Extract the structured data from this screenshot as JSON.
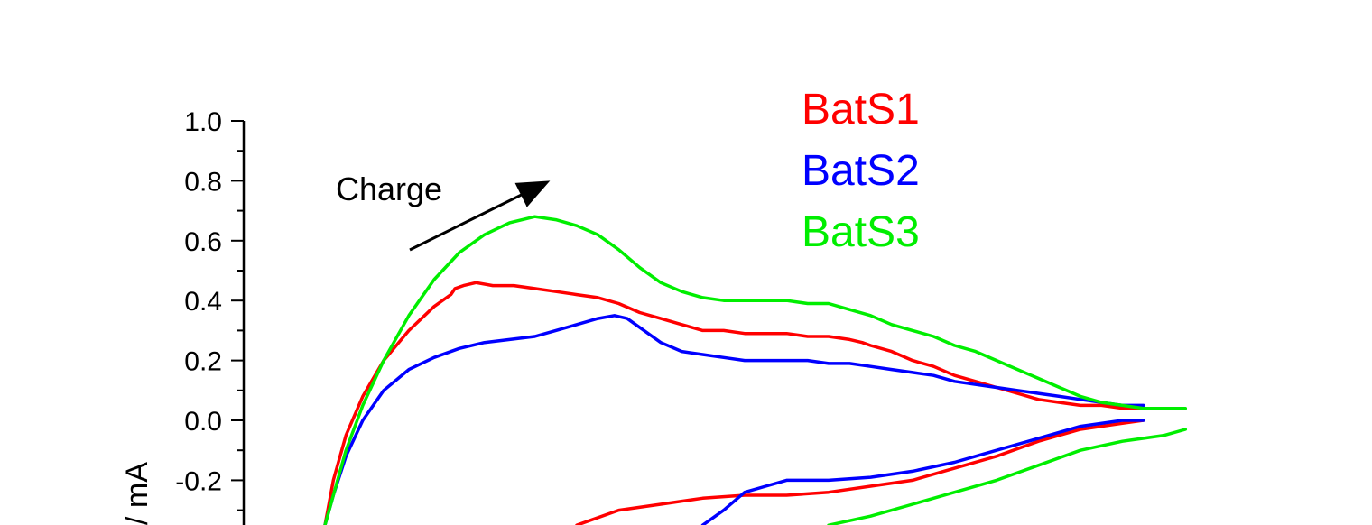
{
  "chart_data": {
    "type": "line",
    "ylabel": "/ mA",
    "ylim": [
      -0.35,
      1.0
    ],
    "yticks": [
      {
        "value": 1.0,
        "label": "1.0"
      },
      {
        "value": 0.8,
        "label": "0.8"
      },
      {
        "value": 0.6,
        "label": "0.6"
      },
      {
        "value": 0.4,
        "label": "0.4"
      },
      {
        "value": 0.2,
        "label": "0.2"
      },
      {
        "value": 0.0,
        "label": "0.0"
      },
      {
        "value": -0.2,
        "label": "-0.2"
      }
    ],
    "annotation": {
      "text": "Charge"
    },
    "legend_position": "top-center",
    "series": [
      {
        "name": "BatS1",
        "color": "#ff0000",
        "x": [
          0.0,
          0.02,
          0.05,
          0.09,
          0.14,
          0.2,
          0.26,
          0.3,
          0.31,
          0.33,
          0.36,
          0.4,
          0.45,
          0.5,
          0.55,
          0.6,
          0.65,
          0.7,
          0.75,
          0.8,
          0.85,
          0.9,
          0.95,
          1.0,
          1.05,
          1.1,
          1.15,
          1.2,
          1.25,
          1.28,
          1.3,
          1.35,
          1.4,
          1.45,
          1.5,
          1.55,
          1.6,
          1.65,
          1.7,
          1.75,
          1.8,
          1.85,
          1.9,
          1.95
        ],
        "values": [
          -0.35,
          -0.2,
          -0.05,
          0.08,
          0.2,
          0.3,
          0.38,
          0.42,
          0.44,
          0.45,
          0.46,
          0.45,
          0.45,
          0.44,
          0.43,
          0.42,
          0.41,
          0.39,
          0.36,
          0.34,
          0.32,
          0.3,
          0.3,
          0.29,
          0.29,
          0.29,
          0.28,
          0.28,
          0.27,
          0.26,
          0.25,
          0.23,
          0.2,
          0.18,
          0.15,
          0.13,
          0.11,
          0.09,
          0.07,
          0.06,
          0.05,
          0.05,
          0.04,
          0.04
        ]
      },
      {
        "name": "BatS2",
        "color": "#0000ff",
        "x": [
          0.0,
          0.02,
          0.05,
          0.09,
          0.14,
          0.2,
          0.26,
          0.32,
          0.38,
          0.44,
          0.5,
          0.55,
          0.6,
          0.65,
          0.69,
          0.72,
          0.75,
          0.8,
          0.85,
          0.9,
          0.95,
          1.0,
          1.05,
          1.1,
          1.15,
          1.2,
          1.25,
          1.3,
          1.35,
          1.4,
          1.45,
          1.5,
          1.55,
          1.6,
          1.65,
          1.7,
          1.75,
          1.8,
          1.85,
          1.9,
          1.95
        ],
        "values": [
          -0.35,
          -0.25,
          -0.12,
          0.0,
          0.1,
          0.17,
          0.21,
          0.24,
          0.26,
          0.27,
          0.28,
          0.3,
          0.32,
          0.34,
          0.35,
          0.34,
          0.31,
          0.26,
          0.23,
          0.22,
          0.21,
          0.2,
          0.2,
          0.2,
          0.2,
          0.19,
          0.19,
          0.18,
          0.17,
          0.16,
          0.15,
          0.13,
          0.12,
          0.11,
          0.1,
          0.09,
          0.08,
          0.07,
          0.06,
          0.05,
          0.05
        ]
      },
      {
        "name": "BatS3",
        "color": "#00ee00",
        "x": [
          0.0,
          0.02,
          0.05,
          0.09,
          0.14,
          0.2,
          0.26,
          0.32,
          0.38,
          0.44,
          0.5,
          0.55,
          0.6,
          0.65,
          0.7,
          0.75,
          0.8,
          0.85,
          0.9,
          0.95,
          1.0,
          1.05,
          1.1,
          1.15,
          1.2,
          1.25,
          1.3,
          1.35,
          1.4,
          1.45,
          1.5,
          1.55,
          1.6,
          1.65,
          1.7,
          1.75,
          1.8,
          1.85,
          1.9,
          1.95,
          2.0,
          2.05
        ],
        "values": [
          -0.35,
          -0.25,
          -0.1,
          0.05,
          0.2,
          0.35,
          0.47,
          0.56,
          0.62,
          0.66,
          0.68,
          0.67,
          0.65,
          0.62,
          0.57,
          0.51,
          0.46,
          0.43,
          0.41,
          0.4,
          0.4,
          0.4,
          0.4,
          0.39,
          0.39,
          0.37,
          0.35,
          0.32,
          0.3,
          0.28,
          0.25,
          0.23,
          0.2,
          0.17,
          0.14,
          0.11,
          0.08,
          0.06,
          0.05,
          0.04,
          0.04,
          0.04
        ]
      }
    ]
  },
  "lower_curves": [
    {
      "name": "BatS1",
      "color": "#ff0000",
      "x": [
        0.6,
        0.7,
        0.8,
        0.9,
        1.0,
        1.1,
        1.2,
        1.3,
        1.4,
        1.5,
        1.6,
        1.7,
        1.8,
        1.9,
        1.95
      ],
      "values": [
        -0.35,
        -0.3,
        -0.28,
        -0.26,
        -0.25,
        -0.25,
        -0.24,
        -0.22,
        -0.2,
        -0.16,
        -0.12,
        -0.07,
        -0.03,
        -0.01,
        0.0
      ]
    },
    {
      "name": "BatS2",
      "color": "#0000ff",
      "x": [
        0.9,
        0.95,
        1.0,
        1.05,
        1.1,
        1.2,
        1.3,
        1.4,
        1.5,
        1.6,
        1.7,
        1.8,
        1.9,
        1.95
      ],
      "values": [
        -0.35,
        -0.3,
        -0.24,
        -0.22,
        -0.2,
        -0.2,
        -0.19,
        -0.17,
        -0.14,
        -0.1,
        -0.06,
        -0.02,
        0.0,
        0.0
      ]
    },
    {
      "name": "BatS3",
      "color": "#00ee00",
      "x": [
        1.2,
        1.3,
        1.4,
        1.5,
        1.6,
        1.7,
        1.8,
        1.9,
        2.0,
        2.05
      ],
      "values": [
        -0.35,
        -0.32,
        -0.28,
        -0.24,
        -0.2,
        -0.15,
        -0.1,
        -0.07,
        -0.05,
        -0.03
      ]
    }
  ]
}
